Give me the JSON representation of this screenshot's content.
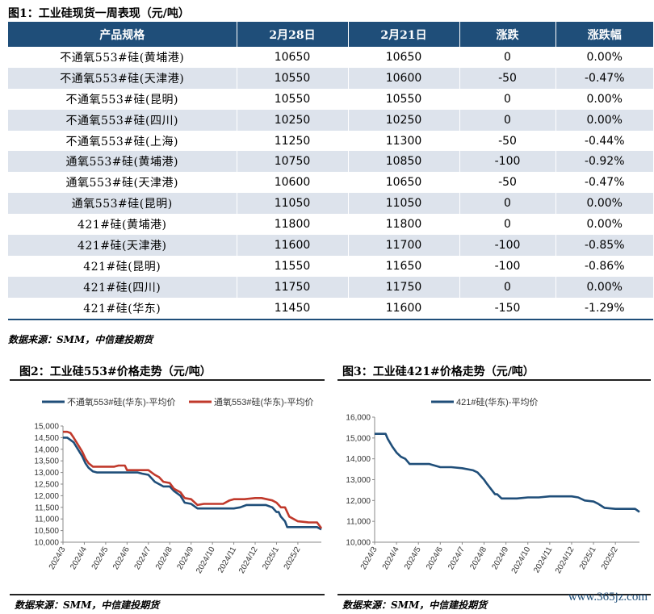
{
  "table_section": {
    "title": "图1：工业硅现货一周表现（元/吨）",
    "headers": [
      "产品规格",
      "2月28日",
      "2月21日",
      "涨跌",
      "涨跌幅"
    ],
    "rows": [
      [
        "不通氧553#硅(黄埔港)",
        "10650",
        "10650",
        "0",
        "0.00%"
      ],
      [
        "不通氧553#硅(天津港)",
        "10550",
        "10600",
        "-50",
        "-0.47%"
      ],
      [
        "不通氧553#硅(昆明)",
        "10550",
        "10550",
        "0",
        "0.00%"
      ],
      [
        "不通氧553#硅(四川)",
        "10250",
        "10250",
        "0",
        "0.00%"
      ],
      [
        "不通氧553#硅(上海)",
        "11250",
        "11300",
        "-50",
        "-0.44%"
      ],
      [
        "通氧553#硅(黄埔港)",
        "10750",
        "10850",
        "-100",
        "-0.92%"
      ],
      [
        "通氧553#硅(天津港)",
        "10600",
        "10650",
        "-50",
        "-0.47%"
      ],
      [
        "通氧553#硅(昆明)",
        "11050",
        "11050",
        "0",
        "0.00%"
      ],
      [
        "421#硅(黄埔港)",
        "11800",
        "11800",
        "0",
        "0.00%"
      ],
      [
        "421#硅(天津港)",
        "11600",
        "11700",
        "-100",
        "-0.85%"
      ],
      [
        "421#硅(昆明)",
        "11550",
        "11650",
        "-100",
        "-0.86%"
      ],
      [
        "421#硅(四川)",
        "11750",
        "11750",
        "0",
        "0.00%"
      ],
      [
        "421#硅(华东)",
        "11450",
        "11600",
        "-150",
        "-1.29%"
      ]
    ],
    "source": "数据来源：SMM，中信建投期货"
  },
  "chart_data": [
    {
      "type": "line",
      "title": "图2：工业硅553#价格走势（元/吨）",
      "x_ticks": [
        "2024/3",
        "2024/4",
        "2024/5",
        "2024/6",
        "2024/7",
        "2024/8",
        "2024/9",
        "2024/10",
        "2024/11",
        "2024/12",
        "2025/1",
        "2025/2"
      ],
      "x_range": [
        0,
        12.1
      ],
      "ylim": [
        10000,
        15000
      ],
      "y_ticks": [
        10000,
        10500,
        11000,
        11500,
        12000,
        12500,
        13000,
        13500,
        14000,
        14500,
        15000
      ],
      "y_tick_labels": [
        "10,000",
        "10,500",
        "11,000",
        "11,500",
        "12,000",
        "12,500",
        "13,000",
        "13,500",
        "14,000",
        "14,500",
        "15,000"
      ],
      "legend_position": "top",
      "series": [
        {
          "name": "不通氧553#硅(华东)-平均价",
          "color": "#1f4e79",
          "x": [
            0,
            0.2,
            0.35,
            0.5,
            0.7,
            0.9,
            1.05,
            1.2,
            1.4,
            1.6,
            2.0,
            2.4,
            3.0,
            3.5,
            3.7,
            4.0,
            4.3,
            4.5,
            4.7,
            5.0,
            5.2,
            5.5,
            5.7,
            6.0,
            6.3,
            6.6,
            7.0,
            7.5,
            8.0,
            8.3,
            8.6,
            9.0,
            9.3,
            9.5,
            9.8,
            10.0,
            10.1,
            10.2,
            10.4,
            10.5,
            11.0,
            11.5,
            11.9,
            12.1
          ],
          "y": [
            14500,
            14500,
            14400,
            14300,
            14000,
            13700,
            13400,
            13200,
            13050,
            13000,
            13000,
            13000,
            13000,
            13000,
            12950,
            12900,
            12600,
            12500,
            12400,
            12400,
            12200,
            12000,
            11700,
            11650,
            11450,
            11450,
            11450,
            11450,
            11450,
            11500,
            11600,
            11600,
            11600,
            11600,
            11500,
            11300,
            11300,
            11100,
            10900,
            10650,
            10650,
            10650,
            10650,
            10550
          ]
        },
        {
          "name": "通氧553#硅(华东)-平均价",
          "color": "#c0392b",
          "x": [
            0,
            0.2,
            0.35,
            0.5,
            0.7,
            0.9,
            1.05,
            1.2,
            1.4,
            1.6,
            2.0,
            2.4,
            2.6,
            2.9,
            3.0,
            3.5,
            3.7,
            4.0,
            4.3,
            4.5,
            4.7,
            5.0,
            5.2,
            5.5,
            5.7,
            6.0,
            6.3,
            6.6,
            7.0,
            7.5,
            7.8,
            8.0,
            8.5,
            9.0,
            9.3,
            9.8,
            10.0,
            10.2,
            10.4,
            10.6,
            11.0,
            11.5,
            11.9,
            12.1
          ],
          "y": [
            14750,
            14750,
            14700,
            14500,
            14200,
            13900,
            13600,
            13400,
            13250,
            13250,
            13250,
            13250,
            13300,
            13300,
            13100,
            13100,
            13100,
            13100,
            12900,
            12800,
            12600,
            12550,
            12300,
            12150,
            11900,
            11850,
            11600,
            11650,
            11650,
            11650,
            11800,
            11850,
            11850,
            11900,
            11900,
            11800,
            11700,
            11500,
            11500,
            11100,
            10900,
            10850,
            10850,
            10600
          ]
        }
      ],
      "source": "数据来源：SMM，中信建投期货"
    },
    {
      "type": "line",
      "title": "图3：工业硅421#价格走势（元/吨）",
      "x_ticks": [
        "2024/3",
        "2024/4",
        "2024/5",
        "2024/6",
        "2024/7",
        "2024/8",
        "2024/9",
        "2024/10",
        "2024/11",
        "2024/12",
        "2025/1",
        "2025/2"
      ],
      "x_range": [
        0,
        12.1
      ],
      "ylim": [
        10000,
        16000
      ],
      "y_ticks": [
        10000,
        11000,
        12000,
        13000,
        14000,
        15000,
        16000
      ],
      "y_tick_labels": [
        "10,000",
        "11,000",
        "12,000",
        "13,000",
        "14,000",
        "15,000",
        "16,000"
      ],
      "legend_position": "top",
      "series": [
        {
          "name": "421#硅(华东)-平均价",
          "color": "#1f4e79",
          "x": [
            0,
            0.5,
            0.6,
            0.8,
            1.0,
            1.2,
            1.4,
            1.6,
            2.0,
            2.5,
            3.0,
            3.5,
            4.0,
            4.5,
            4.7,
            5.0,
            5.1,
            5.5,
            5.6,
            5.8,
            6.0,
            6.5,
            7.0,
            7.5,
            8.0,
            8.5,
            9.0,
            9.3,
            9.6,
            10.0,
            10.2,
            10.5,
            11.0,
            11.5,
            11.8,
            11.9,
            12.1
          ],
          "y": [
            15200,
            15200,
            14950,
            14600,
            14300,
            14100,
            14000,
            13750,
            13750,
            13750,
            13600,
            13600,
            13550,
            13450,
            13350,
            13000,
            12850,
            12300,
            12300,
            12100,
            12100,
            12100,
            12150,
            12150,
            12200,
            12200,
            12200,
            12150,
            12000,
            11950,
            11850,
            11650,
            11600,
            11600,
            11600,
            11600,
            11450
          ]
        }
      ],
      "source": "数据来源：SMM，中信建投期货"
    }
  ],
  "watermark": "www.365jz.com"
}
